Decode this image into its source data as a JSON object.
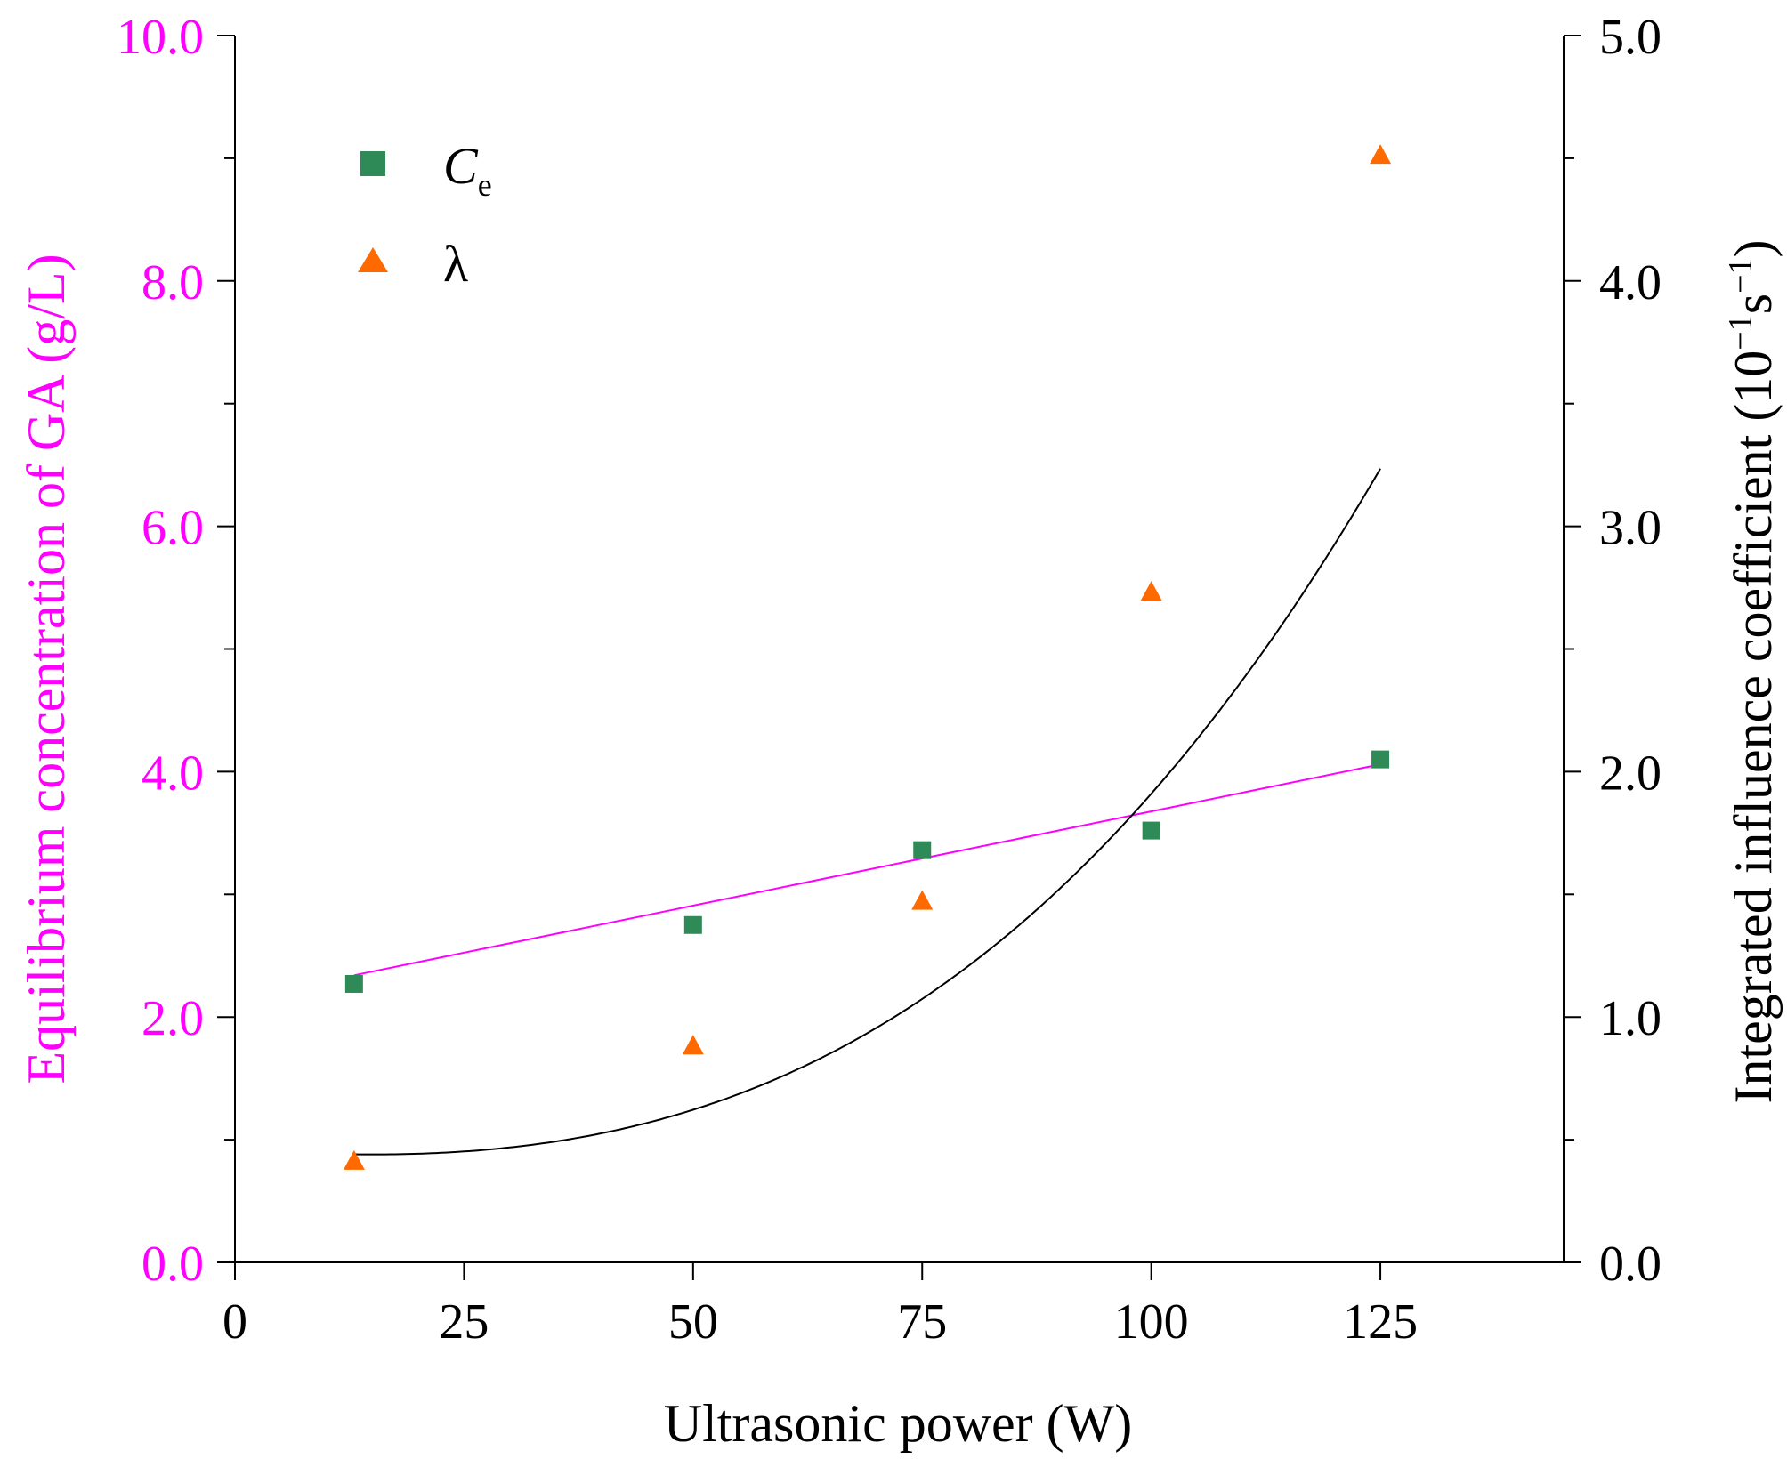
{
  "chart_data": {
    "type": "scatter",
    "title": "",
    "xlabel": "Ultrasonic power (W)",
    "ylabel_left": "Equilibrium concentration of GA  (g/L)",
    "ylabel_right": {
      "text": "Integrated influence coefficient (10",
      "exp1": "−1",
      "mid": "s",
      "exp2": "−1",
      "close": ")"
    },
    "xlim": [
      0,
      145
    ],
    "xticks": [
      0,
      25,
      50,
      75,
      100,
      125
    ],
    "xtick_labels": [
      "0",
      "25",
      "50",
      "75",
      "100",
      "125"
    ],
    "ylim_left": [
      0,
      10
    ],
    "yticks_left": [
      0,
      2,
      4,
      6,
      8,
      10
    ],
    "ytick_labels_left": [
      "0.0",
      "2.0",
      "4.0",
      "6.0",
      "8.0",
      "10.0"
    ],
    "ylim_right": [
      0,
      5
    ],
    "yticks_right": [
      0,
      1,
      2,
      3,
      4,
      5
    ],
    "ytick_labels_right": [
      "0.0",
      "1.0",
      "2.0",
      "3.0",
      "4.0",
      "5.0"
    ],
    "legend_position": "top-left",
    "colors": {
      "left_axis": "#ff00ff",
      "right_axis": "#000000",
      "ce_marker": "#2e8b57",
      "lambda_marker": "#ff6a00",
      "ce_fit": "#ff00ff",
      "lambda_fit": "#000000"
    },
    "series": [
      {
        "name": "C",
        "name_sub": "e",
        "axis": "left",
        "marker": "square",
        "x": [
          13,
          50,
          75,
          100,
          125
        ],
        "y": [
          2.27,
          2.75,
          3.36,
          3.52,
          4.1
        ],
        "fit": {
          "kind": "linear",
          "x": [
            13,
            125
          ],
          "y": [
            2.34,
            4.06
          ]
        }
      },
      {
        "name": "λ",
        "axis": "right",
        "marker": "triangle",
        "x": [
          13,
          50,
          75,
          100,
          125
        ],
        "y": [
          0.41,
          0.88,
          1.47,
          2.73,
          4.51
        ],
        "fit": {
          "kind": "cubic",
          "x0": 15,
          "coeffs": [
            0.44,
            0,
            0.00011,
            1.1e-06
          ],
          "x_range": [
            13,
            125
          ]
        }
      }
    ]
  }
}
